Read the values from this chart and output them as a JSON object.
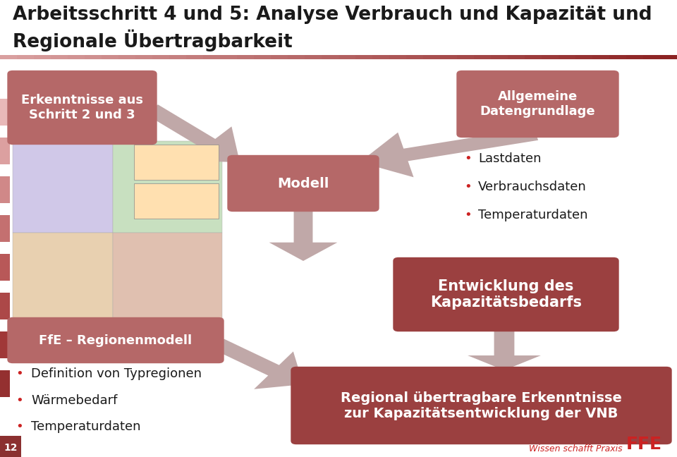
{
  "title_line1": "Arbeitsschritt 4 und 5: Analyse Verbrauch und Kapazität und",
  "title_line2": "Regionale Übertragbarkeit",
  "title_color": "#1a1a1a",
  "title_fontsize": 19,
  "separator_colors": [
    "#d9a0a0",
    "#c07070",
    "#9b3030"
  ],
  "box_color_light": "#b56868",
  "box_color_dark": "#9b4040",
  "box_text_color": "#ffffff",
  "bullet_dot_color": "#cc2222",
  "bullet_text_color": "#1a1a1a",
  "arrow_color": "#c0a8a8",
  "left_bars": [
    {
      "color": "#e8b8b8"
    },
    {
      "color": "#dca0a0"
    },
    {
      "color": "#d08888"
    },
    {
      "color": "#c47070"
    },
    {
      "color": "#b85858"
    },
    {
      "color": "#ac4848"
    },
    {
      "color": "#a03838"
    },
    {
      "color": "#943030"
    }
  ],
  "background_color": "#ffffff",
  "watermark_color": "#cc2222",
  "bottom_number": "12",
  "bottom_bg": "#8b3030"
}
